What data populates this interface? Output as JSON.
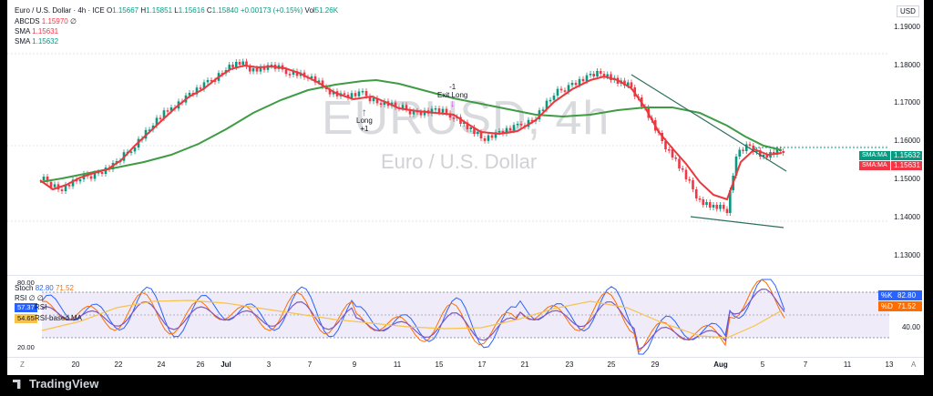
{
  "header": {
    "symbol_line": "Euro / U.S. Dollar · 4h · ICE",
    "open_label": "O",
    "open": "1.15667",
    "high_label": "H",
    "high": "1.15851",
    "low_label": "L",
    "low": "1.15616",
    "close_label": "C",
    "close": "1.15840",
    "change": "+0.00173 (+0.15%)",
    "vol_label": "Vol",
    "vol": "51.26K"
  },
  "indicators": [
    {
      "name": "ABCDS",
      "value": "1.15970",
      "extra": "∅",
      "color": "#f23645"
    },
    {
      "name": "SMA",
      "value": "1.15631",
      "extra": "",
      "color": "#f23645"
    },
    {
      "name": "SMA",
      "value": "1.15632",
      "extra": "",
      "color": "#089981"
    }
  ],
  "watermark": {
    "symbol": "EURUSD, 4h",
    "description": "Euro / U.S. Dollar"
  },
  "price_axis": {
    "currency": "USD",
    "ticks": [
      "1.19000",
      "1.18000",
      "1.17000",
      "1.16000",
      "1.15000",
      "1.14000",
      "1.13000"
    ],
    "ma_tags": [
      {
        "label": "SMA:MA",
        "value": "1.15632",
        "color": "#089981"
      },
      {
        "label": "SMA:MA",
        "value": "1.15631",
        "color": "#f23645"
      }
    ]
  },
  "signals": {
    "long": {
      "label": "Long",
      "qty": "+1"
    },
    "exit": {
      "label": "Exit Long",
      "qty": "-1"
    }
  },
  "oscillator": {
    "stoch_label": "Stoch",
    "stoch_k": "82.80",
    "stoch_d": "71.52",
    "rsi_label": "RSI",
    "rsi_value": "57.37",
    "rsi_extra": "∅ ∅",
    "rsi_ma_label": "RSI-based MA",
    "rsi_ma_value": "54.65",
    "left_axis": [
      "80.00",
      "20.00"
    ],
    "right_axis": [
      "40.00"
    ],
    "k_label": "%K",
    "k_value": "82.80",
    "d_label": "%D",
    "d_value": "71.52"
  },
  "time_axis": {
    "labels": [
      "20",
      "22",
      "24",
      "26",
      "Jul",
      "3",
      "7",
      "9",
      "11",
      "15",
      "17",
      "21",
      "23",
      "25",
      "29",
      "Aug",
      "5",
      "7",
      "11",
      "13"
    ],
    "left_corner": "Z",
    "right_corner": "A"
  },
  "footer": {
    "brand": "TradingView"
  },
  "colors": {
    "fast_ma": "#e8393f",
    "slow_ma": "#3f9b44",
    "up": "#089981",
    "down": "#f23645",
    "stoch_k": "#2962ff",
    "stoch_d": "#ff6d00",
    "rsi": "#7e57c2"
  }
}
